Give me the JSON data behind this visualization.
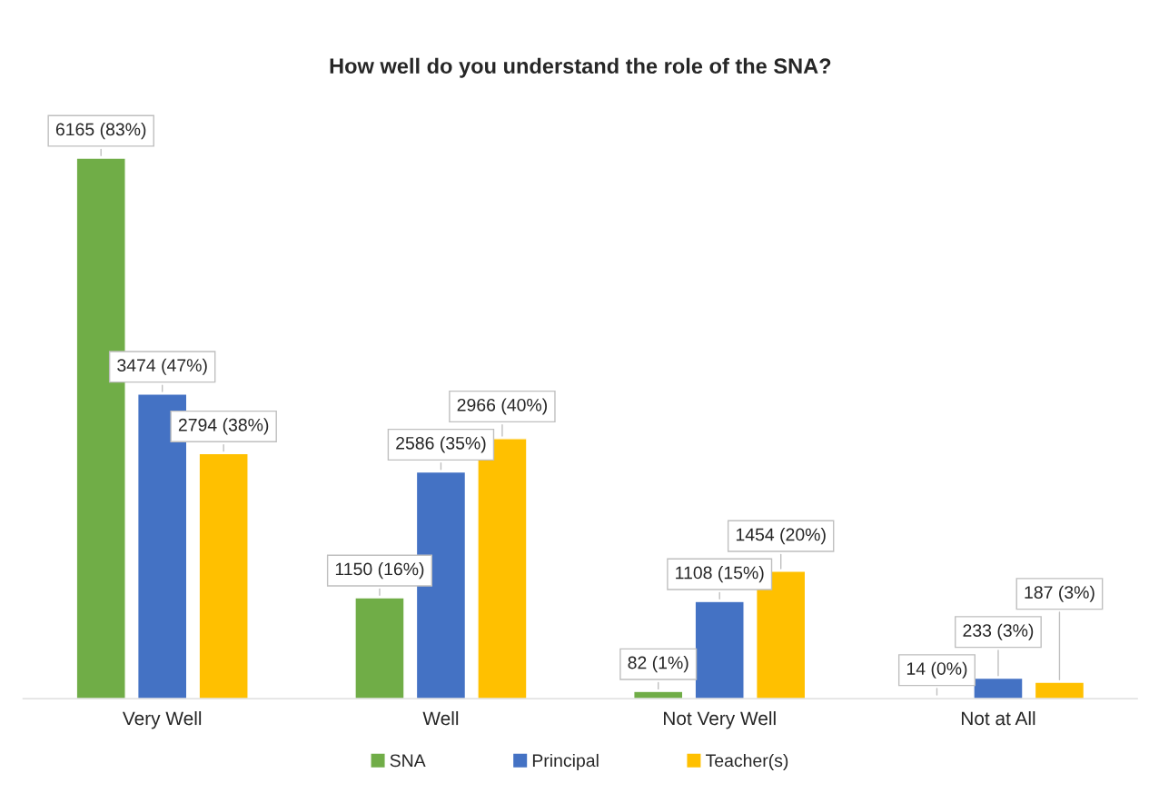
{
  "chart_data": {
    "type": "bar",
    "title": "How well do you understand the role of the SNA?",
    "categories": [
      "Very Well",
      "Well",
      "Not Very Well",
      "Not at All"
    ],
    "series": [
      {
        "name": "SNA",
        "color": "#70ad47",
        "values": [
          6165,
          1150,
          82,
          14
        ],
        "value_labels": [
          "6165 (83%)",
          "1150 (16%)",
          "82 (1%)",
          "14 (0%)"
        ]
      },
      {
        "name": "Principal",
        "color": "#4472c4",
        "values": [
          3474,
          2586,
          1108,
          233
        ],
        "value_labels": [
          "3474 (47%)",
          "2586 (35%)",
          "1108 (15%)",
          "233 (3%)"
        ]
      },
      {
        "name": "Teacher(s)",
        "color": "#ffc000",
        "values": [
          2794,
          2966,
          1454,
          187
        ],
        "value_labels": [
          "2794 (38%)",
          "2966 (40%)",
          "1454 (20%)",
          "187 (3%)"
        ]
      }
    ],
    "legend": "bottom",
    "grid": false
  }
}
